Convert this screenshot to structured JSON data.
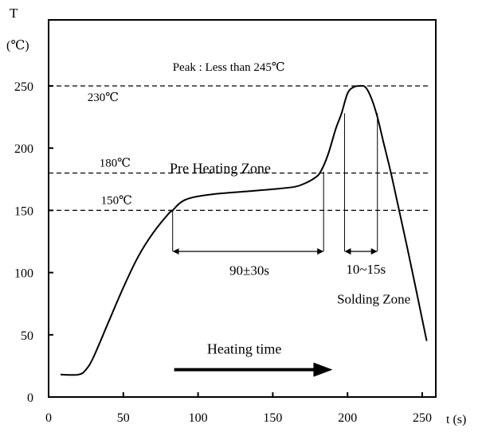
{
  "chart_data": {
    "type": "line",
    "title": "",
    "ylabel": "T",
    "yunit": "(℃)",
    "xlabel": "t (s)",
    "xlim": [
      0,
      255
    ],
    "ylim": [
      0,
      270
    ],
    "xticks": [
      0,
      50,
      100,
      150,
      200,
      250
    ],
    "yticks": [
      0,
      50,
      100,
      150,
      200,
      250
    ],
    "grid": false,
    "series": [
      {
        "x": [
          8,
          20,
          25,
          30,
          40,
          50,
          60,
          70,
          80,
          83,
          88,
          95,
          110,
          130,
          150,
          165,
          172,
          178,
          182,
          187,
          192,
          196,
          200,
          204,
          208,
          212,
          216,
          220,
          224,
          230,
          240,
          253
        ],
        "y": [
          18,
          18,
          22,
          32,
          60,
          88,
          113,
          132,
          147,
          150,
          156,
          160,
          163,
          165,
          167,
          169,
          172,
          176,
          181,
          195,
          215,
          228,
          244,
          249,
          250,
          249,
          240,
          225,
          205,
          175,
          120,
          45
        ]
      }
    ],
    "reference_lines": [
      {
        "y": 250,
        "x_from": 0,
        "x_to": 255,
        "style": "dashed"
      },
      {
        "y": 180,
        "x_from": 0,
        "x_to": 255,
        "style": "dashed"
      },
      {
        "y": 150,
        "x_from": 0,
        "x_to": 255,
        "style": "dashed"
      }
    ],
    "vertical_markers": [
      {
        "x": 83,
        "y_from": 117,
        "y_to": 150
      },
      {
        "x": 184,
        "y_from": 117,
        "y_to": 181
      },
      {
        "x": 198,
        "y_from": 117,
        "y_to": 228
      },
      {
        "x": 220,
        "y_from": 117,
        "y_to": 228
      }
    ],
    "annotations": [
      {
        "text": "Peak : Less than 245℃",
        "x": 83,
        "y": 262
      },
      {
        "text": "230℃",
        "x": 26,
        "y": 238
      },
      {
        "text": "180℃",
        "x": 34,
        "y": 185
      },
      {
        "text": "Pre Heating Zone",
        "x": 81,
        "y": 180
      },
      {
        "text": "150℃",
        "x": 35,
        "y": 155
      },
      {
        "text": "90±30s",
        "x": 121,
        "y": 98
      },
      {
        "text": "10~15s",
        "x": 199,
        "y": 99
      },
      {
        "text": "Solding Zone",
        "x": 193,
        "y": 75
      },
      {
        "text": "Heating time",
        "x": 106,
        "y": 35
      }
    ],
    "dimension_arrows": [
      {
        "x_from": 83,
        "x_to": 184,
        "y": 117
      },
      {
        "x_from": 198,
        "x_to": 220,
        "y": 117
      }
    ],
    "direction_arrow": {
      "x_from": 84,
      "x_to": 190,
      "y": 22
    }
  }
}
